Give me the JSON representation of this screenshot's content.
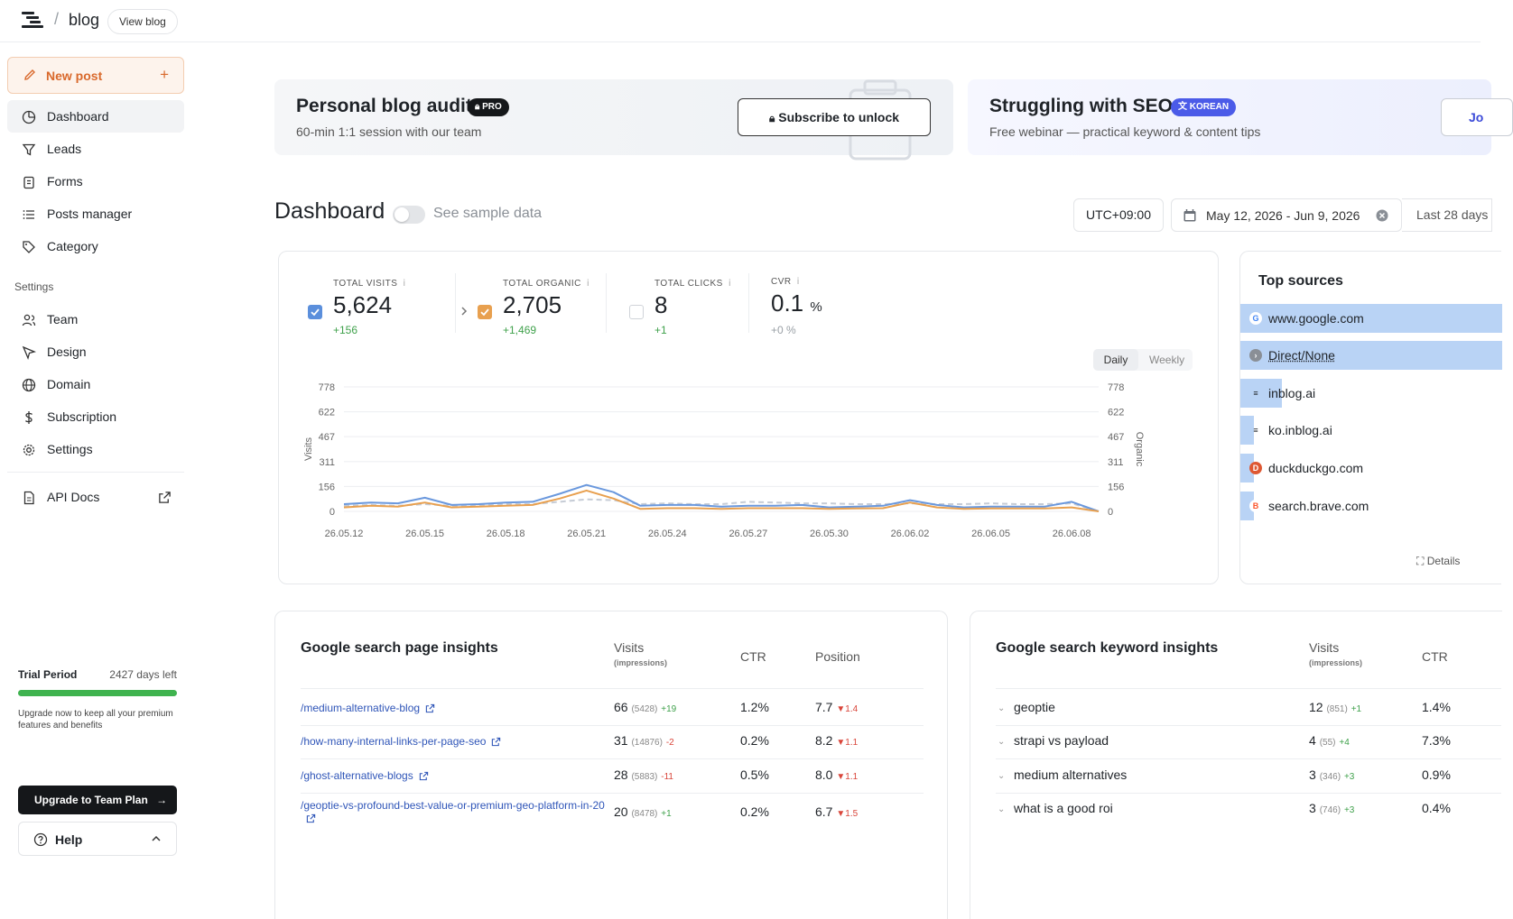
{
  "header": {
    "crumb": "blog",
    "view_blog": "View blog"
  },
  "sidebar": {
    "new_post": "New post",
    "items": [
      {
        "label": "Dashboard",
        "icon": "dashboard-icon"
      },
      {
        "label": "Leads",
        "icon": "filter-icon"
      },
      {
        "label": "Forms",
        "icon": "clipboard-icon"
      },
      {
        "label": "Posts manager",
        "icon": "list-icon"
      },
      {
        "label": "Category",
        "icon": "tag-icon"
      }
    ],
    "settings_label": "Settings",
    "settings_items": [
      {
        "label": "Team",
        "icon": "users-icon"
      },
      {
        "label": "Design",
        "icon": "cursor-icon"
      },
      {
        "label": "Domain",
        "icon": "globe-icon"
      },
      {
        "label": "Subscription",
        "icon": "dollar-icon"
      },
      {
        "label": "Settings",
        "icon": "gear-icon"
      }
    ],
    "api_docs": "API Docs",
    "trial": {
      "title": "Trial Period",
      "days_left": "2427 days left",
      "progress": 1.0,
      "text": "Upgrade now to keep all your premium features and benefits"
    },
    "upgrade": "Upgrade to Team Plan",
    "help": "Help"
  },
  "banners": {
    "audit": {
      "title": "Personal blog audit",
      "badge": "PRO",
      "sub": "60-min 1:1 session with our team",
      "button": "Subscribe to unlock"
    },
    "seo": {
      "title": "Struggling with SEO?",
      "badge": "KOREAN",
      "sub": "Free webinar — practical keyword & content tips",
      "button": "Jo"
    }
  },
  "dashboard": {
    "title": "Dashboard",
    "sample_toggle": "See sample data",
    "timezone": "UTC+09:00",
    "date_range": "May 12, 2026 - Jun 9, 2026",
    "preset": "Last 28 days"
  },
  "metrics": [
    {
      "label": "TOTAL VISITS",
      "value": "5,624",
      "unit": "",
      "delta": "+156",
      "checked": true,
      "color": "#5b8fdc"
    },
    {
      "label": "TOTAL ORGANIC",
      "value": "2,705",
      "unit": "",
      "delta": "+1,469",
      "checked": true,
      "color": "#e8a04f"
    },
    {
      "label": "TOTAL CLICKS",
      "value": "8",
      "unit": "",
      "delta": "+1",
      "checked": false,
      "color": "#cccccc"
    },
    {
      "label": "CVR",
      "value": "0.1",
      "unit": "%",
      "delta": "+0 %",
      "checked": false,
      "color": "#cccccc"
    }
  ],
  "granularity": {
    "active": "Daily",
    "other": "Weekly"
  },
  "chart_data": {
    "type": "line",
    "ylabel": "Visits",
    "y2label": "Organic",
    "yticks": [
      0,
      156,
      311,
      467,
      622,
      778
    ],
    "ylim": [
      0,
      778
    ],
    "xticks": [
      "26.05.12",
      "26.05.15",
      "26.05.18",
      "26.05.21",
      "26.05.24",
      "26.05.27",
      "26.05.30",
      "26.06.02",
      "26.06.05",
      "26.06.08"
    ],
    "x": [
      "26.05.12",
      "26.05.13",
      "26.05.14",
      "26.05.15",
      "26.05.16",
      "26.05.17",
      "26.05.18",
      "26.05.19",
      "26.05.20",
      "26.05.21",
      "26.05.22",
      "26.05.23",
      "26.05.24",
      "26.05.25",
      "26.05.26",
      "26.05.27",
      "26.05.28",
      "26.05.29",
      "26.05.30",
      "26.05.31",
      "26.06.01",
      "26.06.02",
      "26.06.03",
      "26.06.04",
      "26.06.05",
      "26.06.06",
      "26.06.07",
      "26.06.08",
      "26.06.09"
    ],
    "series": [
      {
        "color": "#6a98dd",
        "style": "solid",
        "values": [
          45,
          55,
          50,
          85,
          40,
          45,
          55,
          60,
          110,
          165,
          120,
          35,
          40,
          40,
          30,
          35,
          35,
          40,
          25,
          30,
          35,
          70,
          40,
          25,
          30,
          30,
          30,
          60,
          0
        ]
      },
      {
        "color": "#e8a04f",
        "style": "solid",
        "values": [
          25,
          35,
          30,
          55,
          25,
          30,
          35,
          40,
          80,
          130,
          80,
          15,
          20,
          20,
          15,
          20,
          20,
          20,
          15,
          18,
          20,
          55,
          25,
          15,
          18,
          18,
          18,
          25,
          0
        ]
      },
      {
        "color": "#c6ccd6",
        "style": "dashed",
        "values": [
          35,
          40,
          35,
          45,
          35,
          40,
          45,
          45,
          60,
          75,
          70,
          45,
          50,
          45,
          45,
          60,
          55,
          50,
          50,
          45,
          45,
          50,
          45,
          45,
          50,
          45,
          45,
          50,
          0
        ]
      }
    ]
  },
  "sources": {
    "title": "Top sources",
    "details": "Details",
    "items": [
      {
        "name": "www.google.com",
        "icon": "google-icon",
        "share": 1.0
      },
      {
        "name": "Direct/None",
        "icon": "direct-icon",
        "share": 1.0
      },
      {
        "name": "inblog.ai",
        "icon": "inblog-icon",
        "share": 0.16
      },
      {
        "name": "ko.inblog.ai",
        "icon": "inblog-icon",
        "share": 0.05
      },
      {
        "name": "duckduckgo.com",
        "icon": "duckduckgo-icon",
        "share": 0.05
      },
      {
        "name": "search.brave.com",
        "icon": "brave-icon",
        "share": 0.05
      }
    ]
  },
  "page_insights": {
    "title": "Google search page insights",
    "col_visits": "Visits",
    "col_impr": "(impressions)",
    "col_ctr": "CTR",
    "col_pos": "Position",
    "rows": [
      {
        "path": "/medium-alternative-blog",
        "visits": "66",
        "impr": "(5428)",
        "delta": "+19",
        "delta_pos": true,
        "ctr": "1.2%",
        "position": "7.7",
        "pdelta": "▼1.4"
      },
      {
        "path": "/how-many-internal-links-per-page-seo",
        "visits": "31",
        "impr": "(14876)",
        "delta": "-2",
        "delta_pos": false,
        "ctr": "0.2%",
        "position": "8.2",
        "pdelta": "▼1.1"
      },
      {
        "path": "/ghost-alternative-blogs",
        "visits": "28",
        "impr": "(5883)",
        "delta": "-11",
        "delta_pos": false,
        "ctr": "0.5%",
        "position": "8.0",
        "pdelta": "▼1.1"
      },
      {
        "path": "/geoptie-vs-profound-best-value-or-premium-geo-platform-in-20",
        "visits": "20",
        "impr": "(8478)",
        "delta": "+1",
        "delta_pos": true,
        "ctr": "0.2%",
        "position": "6.7",
        "pdelta": "▼1.5"
      }
    ]
  },
  "keyword_insights": {
    "title": "Google search keyword insights",
    "col_visits": "Visits",
    "col_impr": "(impressions)",
    "col_ctr": "CTR",
    "rows": [
      {
        "keyword": "geoptie",
        "visits": "12",
        "impr": "(851)",
        "delta": "+1",
        "ctr": "1.4%"
      },
      {
        "keyword": "strapi vs payload",
        "visits": "4",
        "impr": "(55)",
        "delta": "+4",
        "ctr": "7.3%"
      },
      {
        "keyword": "medium alternatives",
        "visits": "3",
        "impr": "(346)",
        "delta": "+3",
        "ctr": "0.9%"
      },
      {
        "keyword": "what is a good roi",
        "visits": "3",
        "impr": "(746)",
        "delta": "+3",
        "ctr": "0.4%"
      }
    ]
  }
}
